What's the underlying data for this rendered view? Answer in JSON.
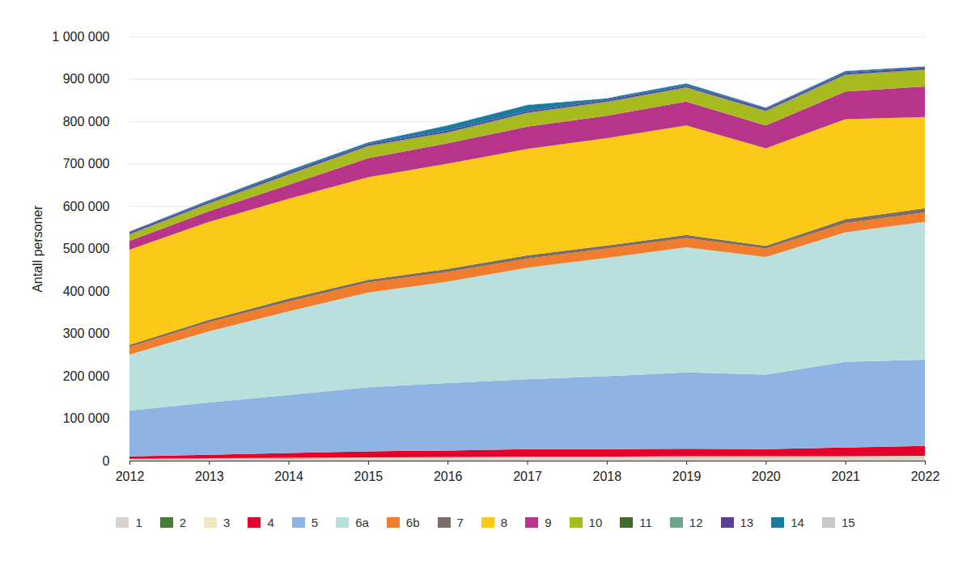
{
  "chart_data": {
    "type": "area",
    "stacked": true,
    "grid": true,
    "legend": "bottom",
    "ylabel": "Antall personer",
    "x": [
      2012,
      2013,
      2014,
      2015,
      2016,
      2017,
      2018,
      2019,
      2020,
      2021,
      2022
    ],
    "xlim": [
      2012,
      2022
    ],
    "xticks": [
      2012,
      2013,
      2014,
      2015,
      2016,
      2017,
      2018,
      2019,
      2020,
      2021,
      2022
    ],
    "ylim": [
      0,
      1000000
    ],
    "yticks": [
      0,
      {
        "value": 100000,
        "label": "100 000"
      },
      {
        "value": 200000,
        "label": "200 000"
      },
      {
        "value": 300000,
        "label": "300 000"
      },
      {
        "value": 400000,
        "label": "400 000"
      },
      {
        "value": 500000,
        "label": "500 000"
      },
      {
        "value": 600000,
        "label": "600 000"
      },
      {
        "value": 700000,
        "label": "700 000"
      },
      {
        "value": 800000,
        "label": "800 000"
      },
      {
        "value": 900000,
        "label": "900 000"
      },
      {
        "value": 1000000,
        "label": "1 000 000"
      }
    ],
    "series": [
      {
        "name": "1",
        "color": "#d9d3cc",
        "values": [
          3000,
          4000,
          5000,
          6000,
          7000,
          8000,
          8000,
          9000,
          9000,
          9000,
          10000
        ]
      },
      {
        "name": "2",
        "color": "#4a7a3a",
        "values": [
          500,
          500,
          500,
          500,
          500,
          500,
          500,
          500,
          500,
          500,
          500
        ]
      },
      {
        "name": "3",
        "color": "#efe8c0",
        "values": [
          1000,
          1000,
          1000,
          1000,
          1000,
          1000,
          1000,
          1000,
          1000,
          1000,
          1000
        ]
      },
      {
        "name": "4",
        "color": "#e4002b",
        "values": [
          5500,
          8500,
          11500,
          14500,
          15500,
          17500,
          17500,
          17500,
          16500,
          20500,
          23500
        ]
      },
      {
        "name": "5",
        "color": "#8db4e2",
        "values": [
          108000,
          123000,
          137000,
          151000,
          159000,
          165000,
          172000,
          180000,
          176000,
          202000,
          203000
        ]
      },
      {
        "name": "6a",
        "color": "#b9e0dd",
        "values": [
          132000,
          168000,
          197000,
          223000,
          239000,
          263000,
          279000,
          295000,
          277000,
          305000,
          325000
        ]
      },
      {
        "name": "6b",
        "color": "#f07c2e",
        "values": [
          18000,
          21000,
          23000,
          24000,
          23000,
          21000,
          22000,
          22000,
          20000,
          22000,
          22000
        ]
      },
      {
        "name": "7",
        "color": "#7a6e66",
        "values": [
          5000,
          6000,
          7000,
          6000,
          7000,
          8000,
          7000,
          7000,
          6000,
          9000,
          10000
        ]
      },
      {
        "name": "8",
        "color": "#fdc918",
        "values": [
          224000,
          231000,
          235000,
          242000,
          248000,
          251000,
          253000,
          258000,
          230000,
          236000,
          215000
        ]
      },
      {
        "name": "9",
        "color": "#b8338a",
        "values": [
          21000,
          25000,
          33000,
          45000,
          48000,
          52000,
          53000,
          56000,
          54000,
          65000,
          72000
        ]
      },
      {
        "name": "10",
        "color": "#a8bb1e",
        "values": [
          14000,
          17000,
          23000,
          27000,
          24000,
          31000,
          31000,
          32000,
          33000,
          38000,
          38000
        ]
      },
      {
        "name": "11",
        "color": "#3f6b2a",
        "values": [
          1000,
          1000,
          1000,
          1000,
          1000,
          1000,
          1000,
          1000,
          1000,
          1000,
          1000
        ]
      },
      {
        "name": "12",
        "color": "#6fa58a",
        "values": [
          1000,
          1000,
          1000,
          1000,
          1000,
          1000,
          1000,
          1000,
          1000,
          1000,
          1000
        ]
      },
      {
        "name": "13",
        "color": "#5b3e96",
        "values": [
          4000,
          4000,
          4000,
          4000,
          4000,
          4000,
          4000,
          4000,
          4000,
          4000,
          4000
        ]
      },
      {
        "name": "14",
        "color": "#1a7ca0",
        "values": [
          2000,
          3000,
          5000,
          4000,
          12000,
          14000,
          4000,
          5000,
          3000,
          4000,
          3000
        ]
      },
      {
        "name": "15",
        "color": "#c8c8c8",
        "values": [
          1000,
          1000,
          1000,
          1000,
          1000,
          1000,
          1000,
          1000,
          1000,
          1000,
          1000
        ]
      }
    ]
  }
}
